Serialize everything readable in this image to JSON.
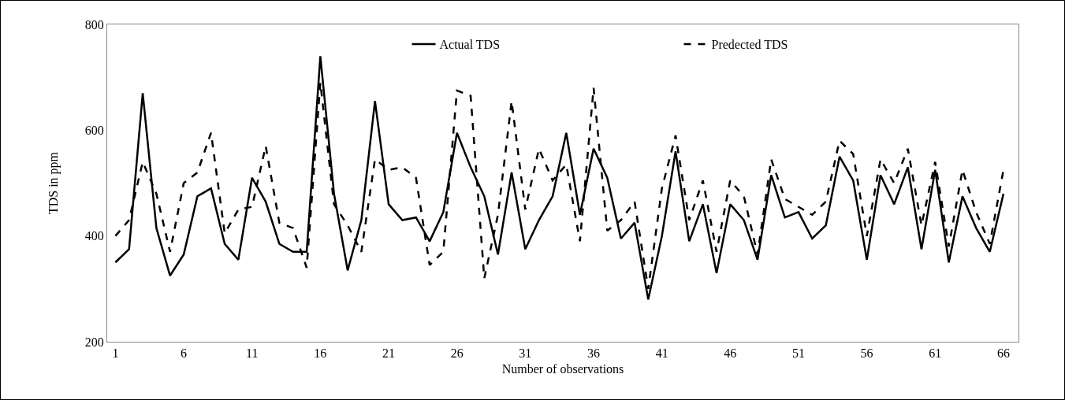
{
  "chart_data": {
    "type": "line",
    "xlabel": "Number of observations",
    "ylabel": "TDS in ppm",
    "x": [
      1,
      2,
      3,
      4,
      5,
      6,
      7,
      8,
      9,
      10,
      11,
      12,
      13,
      14,
      15,
      16,
      17,
      18,
      19,
      20,
      21,
      22,
      23,
      24,
      25,
      26,
      27,
      28,
      29,
      30,
      31,
      32,
      33,
      34,
      35,
      36,
      37,
      38,
      39,
      40,
      41,
      42,
      43,
      44,
      45,
      46,
      47,
      48,
      49,
      50,
      51,
      52,
      53,
      54,
      55,
      56,
      57,
      58,
      59,
      60,
      61,
      62,
      63,
      64,
      65,
      66
    ],
    "xlim": [
      0.4,
      67.1
    ],
    "xticks": [
      1,
      6,
      11,
      16,
      21,
      26,
      31,
      36,
      41,
      46,
      51,
      56,
      61,
      66
    ],
    "ylim": [
      200,
      800
    ],
    "yticks": [
      200,
      400,
      600,
      800
    ],
    "grid": false,
    "legend": "top",
    "marker": "none",
    "series": [
      {
        "name": "Actual TDS",
        "color": "#000000",
        "line_style": "solid",
        "values": [
          350,
          375,
          670,
          415,
          325,
          365,
          475,
          490,
          385,
          355,
          510,
          465,
          385,
          370,
          370,
          740,
          480,
          335,
          430,
          655,
          460,
          430,
          435,
          390,
          445,
          595,
          530,
          475,
          365,
          520,
          375,
          430,
          475,
          595,
          440,
          565,
          510,
          395,
          425,
          280,
          400,
          560,
          390,
          460,
          330,
          460,
          430,
          355,
          515,
          435,
          445,
          395,
          420,
          550,
          505,
          355,
          515,
          460,
          530,
          375,
          525,
          350,
          475,
          415,
          370,
          480
        ]
      },
      {
        "name": "Predected TDS",
        "color": "#000000",
        "line_style": "dashed",
        "values": [
          400,
          430,
          540,
          480,
          370,
          500,
          520,
          595,
          405,
          450,
          455,
          570,
          425,
          415,
          340,
          690,
          460,
          420,
          370,
          545,
          525,
          530,
          510,
          345,
          370,
          675,
          665,
          320,
          440,
          655,
          450,
          565,
          505,
          535,
          390,
          680,
          410,
          430,
          465,
          300,
          490,
          590,
          430,
          505,
          370,
          505,
          475,
          365,
          545,
          470,
          455,
          440,
          465,
          580,
          555,
          400,
          545,
          500,
          565,
          420,
          540,
          380,
          525,
          445,
          385,
          525
        ]
      }
    ]
  }
}
